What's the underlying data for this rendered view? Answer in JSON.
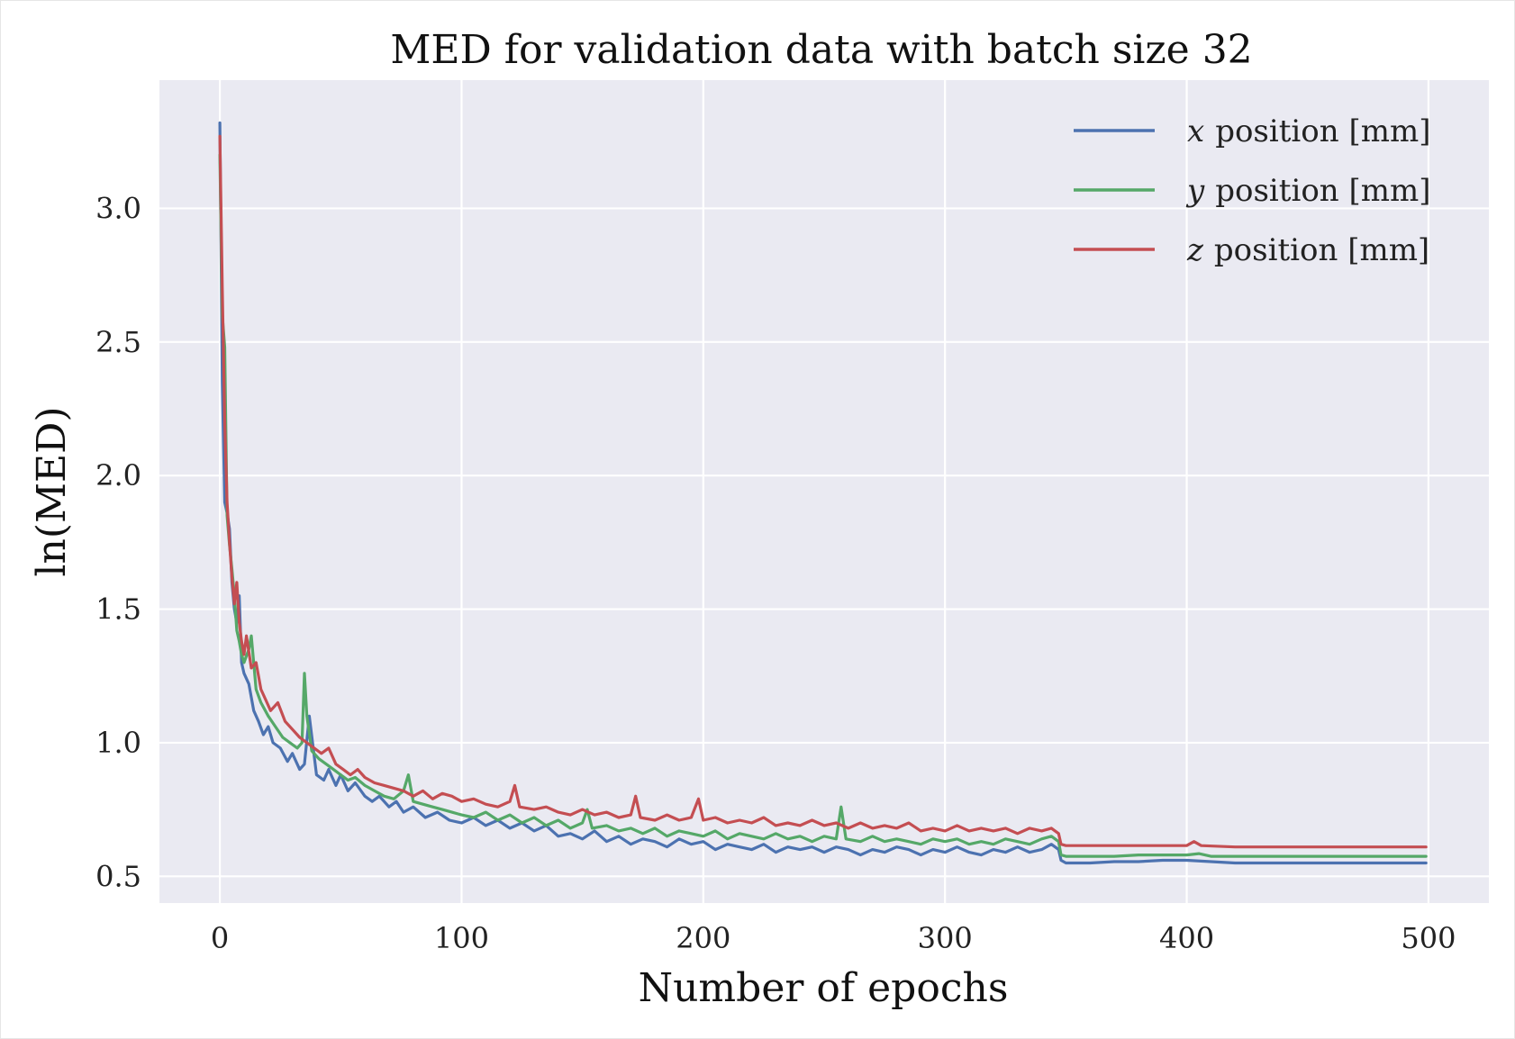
{
  "chart_data": {
    "type": "line",
    "title": "MED for validation data with batch size 32",
    "xlabel": "Number of epochs",
    "ylabel": "ln(MED)",
    "xlim": [
      -25,
      525
    ],
    "ylim": [
      0.4,
      3.48
    ],
    "x_ticks": [
      0,
      100,
      200,
      300,
      400,
      500
    ],
    "x_tick_labels": [
      "0",
      "100",
      "200",
      "300",
      "400",
      "500"
    ],
    "y_ticks": [
      0.5,
      1.0,
      1.5,
      2.0,
      2.5,
      3.0
    ],
    "y_tick_labels": [
      "0.5",
      "1.0",
      "1.5",
      "2.0",
      "2.5",
      "3.0"
    ],
    "grid": true,
    "legend_position": "top-right",
    "series": [
      {
        "name": "x position [mm]",
        "legend_var": "x",
        "legend_rest": "position [mm]",
        "color": "#4c72b0",
        "points": [
          [
            0,
            3.32
          ],
          [
            1,
            2.35
          ],
          [
            2,
            1.9
          ],
          [
            3,
            1.86
          ],
          [
            4,
            1.8
          ],
          [
            5,
            1.6
          ],
          [
            6,
            1.5
          ],
          [
            7,
            1.45
          ],
          [
            8,
            1.55
          ],
          [
            9,
            1.3
          ],
          [
            10,
            1.26
          ],
          [
            12,
            1.22
          ],
          [
            14,
            1.12
          ],
          [
            16,
            1.08
          ],
          [
            18,
            1.03
          ],
          [
            20,
            1.06
          ],
          [
            22,
            1.0
          ],
          [
            25,
            0.98
          ],
          [
            28,
            0.93
          ],
          [
            30,
            0.96
          ],
          [
            33,
            0.9
          ],
          [
            35,
            0.92
          ],
          [
            37,
            1.1
          ],
          [
            40,
            0.88
          ],
          [
            43,
            0.86
          ],
          [
            45,
            0.9
          ],
          [
            48,
            0.84
          ],
          [
            50,
            0.88
          ],
          [
            53,
            0.82
          ],
          [
            56,
            0.85
          ],
          [
            60,
            0.8
          ],
          [
            63,
            0.78
          ],
          [
            66,
            0.8
          ],
          [
            70,
            0.76
          ],
          [
            73,
            0.78
          ],
          [
            76,
            0.74
          ],
          [
            80,
            0.76
          ],
          [
            85,
            0.72
          ],
          [
            90,
            0.74
          ],
          [
            95,
            0.71
          ],
          [
            100,
            0.7
          ],
          [
            105,
            0.72
          ],
          [
            110,
            0.69
          ],
          [
            115,
            0.71
          ],
          [
            120,
            0.68
          ],
          [
            125,
            0.7
          ],
          [
            130,
            0.67
          ],
          [
            135,
            0.69
          ],
          [
            140,
            0.65
          ],
          [
            145,
            0.66
          ],
          [
            150,
            0.64
          ],
          [
            155,
            0.67
          ],
          [
            160,
            0.63
          ],
          [
            165,
            0.65
          ],
          [
            170,
            0.62
          ],
          [
            175,
            0.64
          ],
          [
            180,
            0.63
          ],
          [
            185,
            0.61
          ],
          [
            190,
            0.64
          ],
          [
            195,
            0.62
          ],
          [
            200,
            0.63
          ],
          [
            205,
            0.6
          ],
          [
            210,
            0.62
          ],
          [
            215,
            0.61
          ],
          [
            220,
            0.6
          ],
          [
            225,
            0.62
          ],
          [
            230,
            0.59
          ],
          [
            235,
            0.61
          ],
          [
            240,
            0.6
          ],
          [
            245,
            0.61
          ],
          [
            250,
            0.59
          ],
          [
            255,
            0.61
          ],
          [
            260,
            0.6
          ],
          [
            265,
            0.58
          ],
          [
            270,
            0.6
          ],
          [
            275,
            0.59
          ],
          [
            280,
            0.61
          ],
          [
            285,
            0.6
          ],
          [
            290,
            0.58
          ],
          [
            295,
            0.6
          ],
          [
            300,
            0.59
          ],
          [
            305,
            0.61
          ],
          [
            310,
            0.59
          ],
          [
            315,
            0.58
          ],
          [
            320,
            0.6
          ],
          [
            325,
            0.59
          ],
          [
            330,
            0.61
          ],
          [
            335,
            0.59
          ],
          [
            340,
            0.6
          ],
          [
            344,
            0.62
          ],
          [
            347,
            0.6
          ],
          [
            348,
            0.56
          ],
          [
            350,
            0.55
          ],
          [
            360,
            0.55
          ],
          [
            370,
            0.555
          ],
          [
            380,
            0.555
          ],
          [
            390,
            0.56
          ],
          [
            400,
            0.56
          ],
          [
            410,
            0.555
          ],
          [
            420,
            0.55
          ],
          [
            440,
            0.55
          ],
          [
            460,
            0.55
          ],
          [
            480,
            0.55
          ],
          [
            499,
            0.55
          ]
        ]
      },
      {
        "name": "y position [mm]",
        "legend_var": "y",
        "legend_rest": "position [mm]",
        "color": "#55a868",
        "points": [
          [
            0,
            3.2
          ],
          [
            1,
            2.6
          ],
          [
            2,
            2.48
          ],
          [
            3,
            1.85
          ],
          [
            4,
            1.74
          ],
          [
            5,
            1.65
          ],
          [
            6,
            1.55
          ],
          [
            7,
            1.42
          ],
          [
            8,
            1.38
          ],
          [
            9,
            1.33
          ],
          [
            10,
            1.3
          ],
          [
            12,
            1.35
          ],
          [
            13,
            1.4
          ],
          [
            15,
            1.2
          ],
          [
            17,
            1.15
          ],
          [
            20,
            1.1
          ],
          [
            23,
            1.06
          ],
          [
            26,
            1.02
          ],
          [
            29,
            1.0
          ],
          [
            32,
            0.98
          ],
          [
            34,
            1.0
          ],
          [
            35,
            1.26
          ],
          [
            36,
            1.1
          ],
          [
            38,
            0.97
          ],
          [
            41,
            0.94
          ],
          [
            44,
            0.92
          ],
          [
            47,
            0.9
          ],
          [
            50,
            0.88
          ],
          [
            53,
            0.86
          ],
          [
            56,
            0.87
          ],
          [
            60,
            0.84
          ],
          [
            64,
            0.82
          ],
          [
            68,
            0.8
          ],
          [
            72,
            0.79
          ],
          [
            76,
            0.82
          ],
          [
            78,
            0.88
          ],
          [
            80,
            0.78
          ],
          [
            84,
            0.77
          ],
          [
            88,
            0.76
          ],
          [
            92,
            0.75
          ],
          [
            96,
            0.74
          ],
          [
            100,
            0.73
          ],
          [
            105,
            0.72
          ],
          [
            110,
            0.74
          ],
          [
            115,
            0.71
          ],
          [
            120,
            0.73
          ],
          [
            125,
            0.7
          ],
          [
            130,
            0.72
          ],
          [
            135,
            0.69
          ],
          [
            140,
            0.71
          ],
          [
            145,
            0.68
          ],
          [
            150,
            0.7
          ],
          [
            152,
            0.75
          ],
          [
            154,
            0.68
          ],
          [
            160,
            0.69
          ],
          [
            165,
            0.67
          ],
          [
            170,
            0.68
          ],
          [
            175,
            0.66
          ],
          [
            180,
            0.68
          ],
          [
            185,
            0.65
          ],
          [
            190,
            0.67
          ],
          [
            195,
            0.66
          ],
          [
            200,
            0.65
          ],
          [
            205,
            0.67
          ],
          [
            210,
            0.64
          ],
          [
            215,
            0.66
          ],
          [
            220,
            0.65
          ],
          [
            225,
            0.64
          ],
          [
            230,
            0.66
          ],
          [
            235,
            0.64
          ],
          [
            240,
            0.65
          ],
          [
            245,
            0.63
          ],
          [
            250,
            0.65
          ],
          [
            255,
            0.64
          ],
          [
            257,
            0.76
          ],
          [
            259,
            0.64
          ],
          [
            265,
            0.63
          ],
          [
            270,
            0.65
          ],
          [
            275,
            0.63
          ],
          [
            280,
            0.64
          ],
          [
            285,
            0.63
          ],
          [
            290,
            0.62
          ],
          [
            295,
            0.64
          ],
          [
            300,
            0.63
          ],
          [
            305,
            0.64
          ],
          [
            310,
            0.62
          ],
          [
            315,
            0.63
          ],
          [
            320,
            0.62
          ],
          [
            325,
            0.64
          ],
          [
            330,
            0.63
          ],
          [
            335,
            0.62
          ],
          [
            340,
            0.64
          ],
          [
            344,
            0.65
          ],
          [
            347,
            0.63
          ],
          [
            348,
            0.58
          ],
          [
            350,
            0.575
          ],
          [
            360,
            0.575
          ],
          [
            370,
            0.575
          ],
          [
            380,
            0.58
          ],
          [
            390,
            0.58
          ],
          [
            400,
            0.58
          ],
          [
            405,
            0.585
          ],
          [
            410,
            0.575
          ],
          [
            420,
            0.575
          ],
          [
            440,
            0.575
          ],
          [
            460,
            0.575
          ],
          [
            480,
            0.575
          ],
          [
            499,
            0.575
          ]
        ]
      },
      {
        "name": "z position [mm]",
        "legend_var": "z",
        "legend_rest": "position [mm]",
        "color": "#c44e52",
        "points": [
          [
            0,
            3.27
          ],
          [
            1,
            2.7
          ],
          [
            2,
            2.2
          ],
          [
            3,
            1.9
          ],
          [
            4,
            1.75
          ],
          [
            5,
            1.62
          ],
          [
            6,
            1.52
          ],
          [
            7,
            1.6
          ],
          [
            8,
            1.45
          ],
          [
            9,
            1.38
          ],
          [
            10,
            1.33
          ],
          [
            11,
            1.4
          ],
          [
            13,
            1.28
          ],
          [
            15,
            1.3
          ],
          [
            17,
            1.2
          ],
          [
            19,
            1.16
          ],
          [
            21,
            1.12
          ],
          [
            24,
            1.15
          ],
          [
            27,
            1.08
          ],
          [
            30,
            1.05
          ],
          [
            33,
            1.02
          ],
          [
            36,
            1.0
          ],
          [
            39,
            0.98
          ],
          [
            42,
            0.96
          ],
          [
            45,
            0.98
          ],
          [
            48,
            0.92
          ],
          [
            51,
            0.9
          ],
          [
            54,
            0.88
          ],
          [
            57,
            0.9
          ],
          [
            60,
            0.87
          ],
          [
            64,
            0.85
          ],
          [
            68,
            0.84
          ],
          [
            72,
            0.83
          ],
          [
            76,
            0.82
          ],
          [
            80,
            0.8
          ],
          [
            84,
            0.82
          ],
          [
            88,
            0.79
          ],
          [
            92,
            0.81
          ],
          [
            96,
            0.8
          ],
          [
            100,
            0.78
          ],
          [
            105,
            0.79
          ],
          [
            110,
            0.77
          ],
          [
            115,
            0.76
          ],
          [
            120,
            0.78
          ],
          [
            122,
            0.84
          ],
          [
            124,
            0.76
          ],
          [
            130,
            0.75
          ],
          [
            135,
            0.76
          ],
          [
            140,
            0.74
          ],
          [
            145,
            0.73
          ],
          [
            150,
            0.75
          ],
          [
            155,
            0.73
          ],
          [
            160,
            0.74
          ],
          [
            165,
            0.72
          ],
          [
            170,
            0.73
          ],
          [
            172,
            0.8
          ],
          [
            174,
            0.72
          ],
          [
            180,
            0.71
          ],
          [
            185,
            0.73
          ],
          [
            190,
            0.71
          ],
          [
            195,
            0.72
          ],
          [
            198,
            0.79
          ],
          [
            200,
            0.71
          ],
          [
            205,
            0.72
          ],
          [
            210,
            0.7
          ],
          [
            215,
            0.71
          ],
          [
            220,
            0.7
          ],
          [
            225,
            0.72
          ],
          [
            230,
            0.69
          ],
          [
            235,
            0.7
          ],
          [
            240,
            0.69
          ],
          [
            245,
            0.71
          ],
          [
            250,
            0.69
          ],
          [
            255,
            0.7
          ],
          [
            260,
            0.68
          ],
          [
            265,
            0.7
          ],
          [
            270,
            0.68
          ],
          [
            275,
            0.69
          ],
          [
            280,
            0.68
          ],
          [
            285,
            0.7
          ],
          [
            290,
            0.67
          ],
          [
            295,
            0.68
          ],
          [
            300,
            0.67
          ],
          [
            305,
            0.69
          ],
          [
            310,
            0.67
          ],
          [
            315,
            0.68
          ],
          [
            320,
            0.67
          ],
          [
            325,
            0.68
          ],
          [
            330,
            0.66
          ],
          [
            335,
            0.68
          ],
          [
            340,
            0.67
          ],
          [
            344,
            0.68
          ],
          [
            347,
            0.66
          ],
          [
            348,
            0.62
          ],
          [
            350,
            0.615
          ],
          [
            360,
            0.615
          ],
          [
            370,
            0.615
          ],
          [
            380,
            0.615
          ],
          [
            390,
            0.615
          ],
          [
            400,
            0.615
          ],
          [
            403,
            0.63
          ],
          [
            406,
            0.615
          ],
          [
            420,
            0.61
          ],
          [
            440,
            0.61
          ],
          [
            460,
            0.61
          ],
          [
            480,
            0.61
          ],
          [
            499,
            0.61
          ]
        ]
      }
    ]
  }
}
